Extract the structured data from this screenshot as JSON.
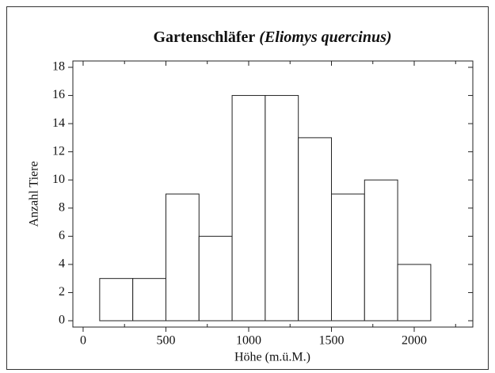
{
  "chart_data": {
    "type": "histogram",
    "title": [
      "Gartenschläfer",
      "(Eliomys quercinus)"
    ],
    "xlabel": "Höhe (m.ü.M.)",
    "ylabel": "Anzahl Tiere",
    "bins": [
      100,
      300,
      500,
      700,
      900,
      1100,
      1300,
      1500,
      1700,
      1900,
      2100
    ],
    "values": [
      3,
      3,
      9,
      6,
      16,
      16,
      13,
      9,
      10,
      4
    ],
    "color": "#ffffff",
    "xlim": [
      -62,
      2354
    ],
    "xticks": [
      0,
      500,
      1000,
      1500,
      2000
    ],
    "xminor_ticks": [
      250,
      750,
      1250,
      1750,
      2250
    ],
    "ylim": [
      -0.45,
      18.45
    ],
    "yticks": [
      0,
      2,
      4,
      6,
      8,
      10,
      12,
      14,
      16,
      18
    ],
    "grid": false
  }
}
